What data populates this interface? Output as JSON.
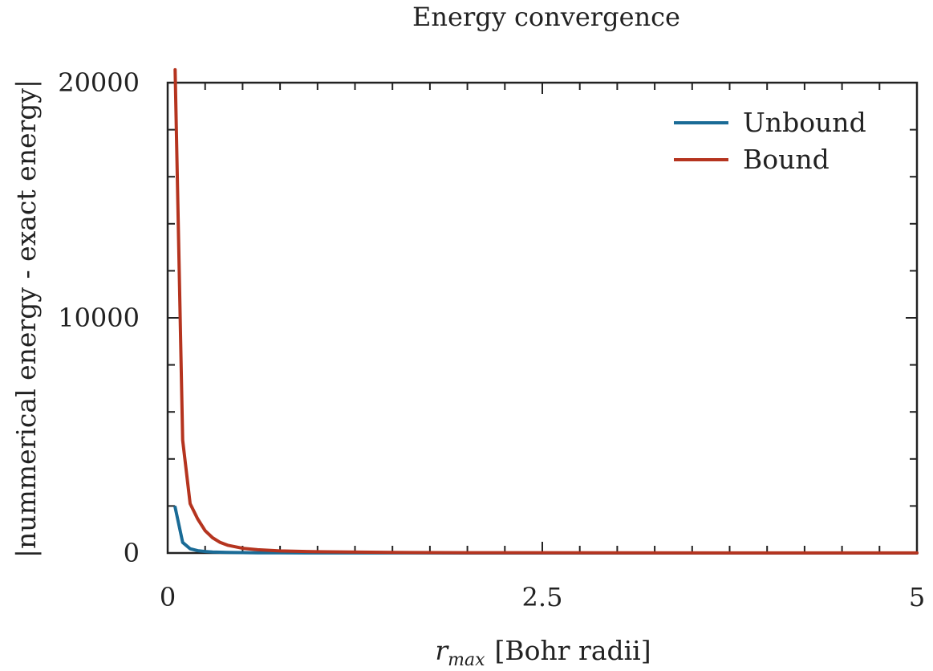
{
  "chart_data": {
    "type": "line",
    "title": "Energy convergence",
    "xlabel_main": "r",
    "xlabel_sub": "max",
    "xlabel_unit": "[Bohr radii]",
    "ylabel": "|nummerical energy - exact energy|",
    "xlim": [
      0,
      5
    ],
    "ylim": [
      0,
      20000
    ],
    "x_ticks": [
      0,
      2.5,
      5
    ],
    "x_tick_labels": [
      "0",
      "2.5",
      "5"
    ],
    "y_ticks": [
      0,
      10000,
      20000
    ],
    "y_tick_labels": [
      "0",
      "10000",
      "20000"
    ],
    "x_minor_step": 0.25,
    "y_minor_step": 2000,
    "grid": false,
    "legend_position": "top-right",
    "series": [
      {
        "name": "Unbound",
        "color": "#1a6b96",
        "x": [
          0.05,
          0.1,
          0.15,
          0.2,
          0.25,
          0.3,
          0.35,
          0.4,
          0.5,
          0.6,
          0.75,
          1.0,
          1.5,
          2.0,
          3.0,
          4.0,
          5.0
        ],
        "y": [
          1950,
          450,
          180,
          100,
          65,
          45,
          33,
          25,
          16,
          11,
          7,
          4,
          2,
          1,
          0.5,
          0.3,
          0.2
        ]
      },
      {
        "name": "Bound",
        "color": "#b5341f",
        "x": [
          0.05,
          0.1,
          0.15,
          0.2,
          0.25,
          0.3,
          0.35,
          0.4,
          0.5,
          0.6,
          0.75,
          1.0,
          1.5,
          2.0,
          3.0,
          4.0,
          5.0
        ],
        "y": [
          20550,
          4800,
          2100,
          1450,
          950,
          650,
          450,
          330,
          200,
          140,
          90,
          55,
          25,
          15,
          7,
          4,
          2
        ]
      }
    ]
  }
}
